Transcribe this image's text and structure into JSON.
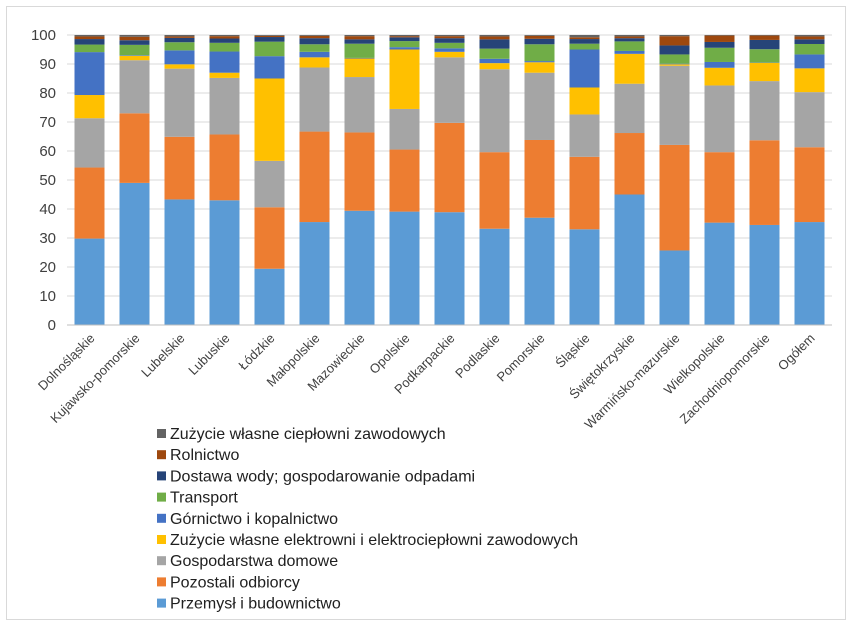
{
  "chart_data": {
    "type": "bar",
    "stacked": true,
    "title": "",
    "xlabel": "",
    "ylabel": "",
    "ylim": [
      0,
      100
    ],
    "yticks": [
      0,
      10,
      20,
      30,
      40,
      50,
      60,
      70,
      80,
      90,
      100
    ],
    "grid": true,
    "legend_position": "bottom",
    "categories": [
      "Dolnośląskie",
      "Kujawsko-pomorskie",
      "Lubelskie",
      "Lubuskie",
      "Łódzkie",
      "Małopolskie",
      "Mazowieckie",
      "Opolskie",
      "Podkarpackie",
      "Podlaskie",
      "Pomorskie",
      "Śląskie",
      "Świętokrzyskie",
      "Warmińsko-mazurskie",
      "Wielkopolskie",
      "Zachodniopomorskie",
      "Ogółem"
    ],
    "series": [
      {
        "name": "Przemysł i budownictwo",
        "color": "#5b9bd5",
        "values": [
          29.8,
          49.0,
          43.3,
          43.0,
          19.4,
          35.5,
          39.4,
          39.1,
          38.9,
          33.2,
          37.0,
          33.0,
          45.0,
          25.7,
          35.3,
          34.5,
          35.5
        ]
      },
      {
        "name": "Pozostali odbiorcy",
        "color": "#ed7d31",
        "values": [
          24.5,
          24.0,
          21.6,
          22.7,
          21.2,
          31.2,
          27.0,
          21.4,
          30.8,
          26.4,
          26.8,
          25.0,
          21.2,
          36.4,
          24.3,
          29.2,
          25.8
        ]
      },
      {
        "name": "Gospodarstwa domowe",
        "color": "#a5a5a5",
        "values": [
          17.0,
          18.3,
          23.5,
          19.5,
          16.0,
          22.1,
          19.1,
          14.0,
          22.6,
          28.6,
          23.2,
          14.6,
          17.0,
          27.3,
          23.0,
          20.4,
          19.0
        ]
      },
      {
        "name": "Zużycie własne elektrowni i elektrociepłowni zawodowych",
        "color": "#ffc000",
        "values": [
          8.0,
          1.5,
          1.5,
          1.8,
          28.4,
          3.5,
          6.4,
          20.5,
          1.9,
          2.1,
          3.6,
          9.3,
          10.3,
          0.5,
          6.1,
          6.3,
          8.2
        ]
      },
      {
        "name": "Górnictwo i kopalnictwo",
        "color": "#4472c4",
        "values": [
          14.8,
          0.2,
          4.8,
          7.3,
          7.7,
          1.9,
          0.2,
          0.8,
          1.2,
          1.5,
          0.4,
          13.1,
          1.0,
          0.2,
          2.0,
          0.1,
          4.8
        ]
      },
      {
        "name": "Transport",
        "color": "#70ad47",
        "values": [
          2.6,
          3.6,
          2.8,
          3.0,
          5.0,
          2.6,
          4.9,
          2.1,
          1.9,
          3.5,
          5.8,
          2.0,
          3.3,
          3.2,
          4.9,
          4.6,
          3.6
        ]
      },
      {
        "name": "Dostawa wody; gospodarowanie odpadami",
        "color": "#264478",
        "values": [
          1.9,
          1.6,
          1.5,
          1.5,
          1.6,
          2.1,
          1.5,
          1.3,
          1.6,
          3.2,
          1.9,
          1.6,
          1.1,
          3.1,
          2.0,
          3.2,
          1.6
        ]
      },
      {
        "name": "Rolnictwo",
        "color": "#9e480e",
        "values": [
          0.9,
          1.2,
          0.5,
          0.8,
          0.4,
          0.8,
          1.1,
          0.4,
          0.7,
          1.0,
          1.0,
          0.6,
          0.6,
          3.2,
          2.2,
          1.5,
          1.0
        ]
      },
      {
        "name": "Zużycie własne ciepłowni zawodowych",
        "color": "#636363",
        "values": [
          0.5,
          0.6,
          0.5,
          0.4,
          0.3,
          0.3,
          0.4,
          0.4,
          0.4,
          0.5,
          0.3,
          0.8,
          0.5,
          0.4,
          0.2,
          0.2,
          0.5
        ]
      }
    ]
  }
}
